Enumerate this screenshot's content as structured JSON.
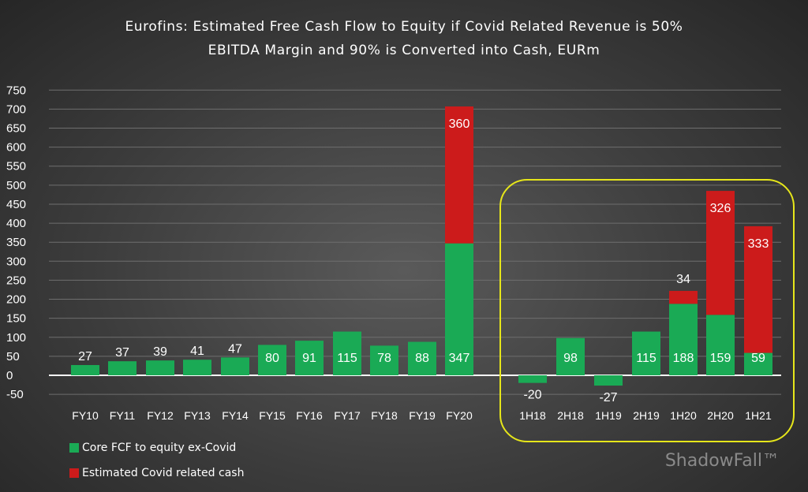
{
  "chart_data": {
    "type": "bar",
    "title": "Eurofins: Estimated Free Cash Flow to Equity if Covid Related Revenue is 50%",
    "subtitle": "EBITDA Margin and 90% is Converted into Cash, EURm",
    "categories": [
      "FY10",
      "FY11",
      "FY12",
      "FY13",
      "FY14",
      "FY15",
      "FY16",
      "FY17",
      "FY18",
      "FY19",
      "FY20",
      "1H18",
      "2H18",
      "1H19",
      "2H19",
      "1H20",
      "2H20",
      "1H21"
    ],
    "series": [
      {
        "name": "Core FCF to equity ex-Covid",
        "color": "#1aaa55",
        "values": [
          27,
          37,
          39,
          41,
          47,
          80,
          91,
          115,
          78,
          88,
          347,
          -20,
          98,
          -27,
          115,
          188,
          159,
          59
        ]
      },
      {
        "name": "Estimated Covid related cash",
        "color": "#cc1b1b",
        "values": [
          0,
          0,
          0,
          0,
          0,
          0,
          0,
          0,
          0,
          0,
          360,
          0,
          0,
          0,
          0,
          34,
          326,
          333
        ]
      }
    ],
    "stacked": true,
    "ylim": [
      -50,
      750
    ],
    "yticks": [
      -50,
      0,
      50,
      100,
      150,
      200,
      250,
      300,
      350,
      400,
      450,
      500,
      550,
      600,
      650,
      700,
      750
    ],
    "grid": true,
    "legend": "bottom-left",
    "annotation": "highlighted half-year group 1H18-1H21"
  },
  "watermark": "ShadowFall™"
}
